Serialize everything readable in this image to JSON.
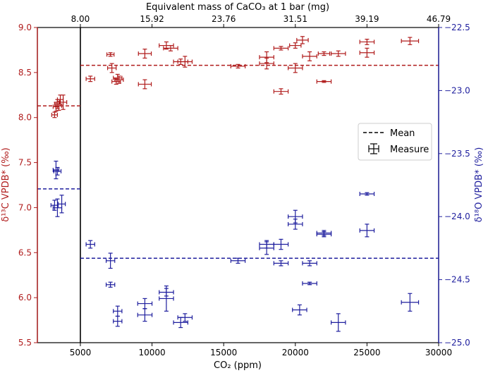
{
  "chart_data": {
    "type": "scatter",
    "xlabel": "CO₂ (ppm)",
    "x_ticks": [
      "5000",
      "10000",
      "15000",
      "20000",
      "25000",
      "30000"
    ],
    "x_tick_values": [
      5000,
      10000,
      15000,
      20000,
      25000,
      30000
    ],
    "xlim": [
      2000,
      30000
    ],
    "top_xlabel": "Equivalent mass of CaCO₃ at 1 bar (mg)",
    "top_ticks": [
      "8.00",
      "15.92",
      "23.76",
      "31.51",
      "39.19",
      "46.79"
    ],
    "ylabel_left": "δ¹³C VPDB* (‰)",
    "ylim_left": [
      5.5,
      9.0
    ],
    "left_ticks": [
      "5.5",
      "6.0",
      "6.5",
      "7.0",
      "7.5",
      "8.0",
      "8.5",
      "9.0"
    ],
    "left_tick_values": [
      5.5,
      6.0,
      6.5,
      7.0,
      7.5,
      8.0,
      8.5,
      9.0
    ],
    "ylabel_right": "δ¹⁸O VPDB* (‰)",
    "ylim_right": [
      -25.0,
      -22.5
    ],
    "right_ticks": [
      "−22.5",
      "−23.0",
      "−23.5",
      "−24.0",
      "−24.5",
      "−25.0"
    ],
    "right_tick_values": [
      -22.5,
      -23.0,
      -23.5,
      -24.0,
      -24.5,
      -25.0
    ],
    "vline_x": 5000,
    "legend": {
      "position": "center-right",
      "mean_label": "Mean",
      "measure_label": "Measure"
    },
    "colors": {
      "carbon": "#b01c1c",
      "oxygen": "#1f1f9e",
      "axis": "#000000"
    },
    "series": [
      {
        "name": "δ¹³C",
        "axis": "left",
        "color": "#b01c1c",
        "means": [
          {
            "x_range": [
              2000,
              5000
            ],
            "y": 8.13
          },
          {
            "x_range": [
              5000,
              30000
            ],
            "y": 8.58
          }
        ],
        "points": [
          {
            "x": 3200,
            "y": 8.03,
            "xerr": 200,
            "yerr": 0.03
          },
          {
            "x": 3300,
            "y": 8.12,
            "xerr": 200,
            "yerr": 0.05
          },
          {
            "x": 3400,
            "y": 8.15,
            "xerr": 200,
            "yerr": 0.05
          },
          {
            "x": 3500,
            "y": 8.13,
            "xerr": 200,
            "yerr": 0.05
          },
          {
            "x": 3600,
            "y": 8.2,
            "xerr": 200,
            "yerr": 0.05
          },
          {
            "x": 3800,
            "y": 8.17,
            "xerr": 250,
            "yerr": 0.08
          },
          {
            "x": 5700,
            "y": 8.43,
            "xerr": 300,
            "yerr": 0.03
          },
          {
            "x": 7100,
            "y": 8.7,
            "xerr": 250,
            "yerr": 0.02
          },
          {
            "x": 7200,
            "y": 8.55,
            "xerr": 300,
            "yerr": 0.05
          },
          {
            "x": 7500,
            "y": 8.4,
            "xerr": 300,
            "yerr": 0.03
          },
          {
            "x": 7600,
            "y": 8.44,
            "xerr": 300,
            "yerr": 0.04
          },
          {
            "x": 7700,
            "y": 8.42,
            "xerr": 300,
            "yerr": 0.04
          },
          {
            "x": 9500,
            "y": 8.71,
            "xerr": 450,
            "yerr": 0.05
          },
          {
            "x": 9500,
            "y": 8.37,
            "xerr": 450,
            "yerr": 0.05
          },
          {
            "x": 11000,
            "y": 8.8,
            "xerr": 500,
            "yerr": 0.04
          },
          {
            "x": 11300,
            "y": 8.77,
            "xerr": 500,
            "yerr": 0.03
          },
          {
            "x": 12000,
            "y": 8.62,
            "xerr": 500,
            "yerr": 0.03
          },
          {
            "x": 12300,
            "y": 8.62,
            "xerr": 500,
            "yerr": 0.06
          },
          {
            "x": 16000,
            "y": 8.57,
            "xerr": 500,
            "yerr": 0.02
          },
          {
            "x": 18000,
            "y": 8.67,
            "xerr": 500,
            "yerr": 0.06
          },
          {
            "x": 18000,
            "y": 8.6,
            "xerr": 500,
            "yerr": 0.06
          },
          {
            "x": 19000,
            "y": 8.77,
            "xerr": 500,
            "yerr": 0.02
          },
          {
            "x": 19000,
            "y": 8.29,
            "xerr": 500,
            "yerr": 0.03
          },
          {
            "x": 20000,
            "y": 8.8,
            "xerr": 400,
            "yerr": 0.03
          },
          {
            "x": 20000,
            "y": 8.55,
            "xerr": 500,
            "yerr": 0.05
          },
          {
            "x": 20500,
            "y": 8.86,
            "xerr": 400,
            "yerr": 0.04
          },
          {
            "x": 21000,
            "y": 8.68,
            "xerr": 500,
            "yerr": 0.05
          },
          {
            "x": 22000,
            "y": 8.71,
            "xerr": 400,
            "yerr": 0.02
          },
          {
            "x": 22000,
            "y": 8.4,
            "xerr": 500,
            "yerr": 0.01
          },
          {
            "x": 23000,
            "y": 8.71,
            "xerr": 500,
            "yerr": 0.03
          },
          {
            "x": 25000,
            "y": 8.84,
            "xerr": 500,
            "yerr": 0.03
          },
          {
            "x": 25000,
            "y": 8.72,
            "xerr": 500,
            "yerr": 0.05
          },
          {
            "x": 28000,
            "y": 8.85,
            "xerr": 600,
            "yerr": 0.04
          }
        ]
      },
      {
        "name": "δ¹⁸O",
        "axis": "right",
        "color": "#1f1f9e",
        "means": [
          {
            "x_range": [
              2000,
              5000
            ],
            "y": -23.78
          },
          {
            "x_range": [
              5000,
              30000
            ],
            "y": -24.33
          }
        ],
        "points": [
          {
            "x": 3300,
            "y": -23.63,
            "xerr": 200,
            "yerr": 0.07
          },
          {
            "x": 3400,
            "y": -23.64,
            "xerr": 250,
            "yerr": 0.03
          },
          {
            "x": 3200,
            "y": -23.91,
            "xerr": 250,
            "yerr": 0.04
          },
          {
            "x": 3400,
            "y": -23.93,
            "xerr": 300,
            "yerr": 0.07
          },
          {
            "x": 3700,
            "y": -23.9,
            "xerr": 250,
            "yerr": 0.07
          },
          {
            "x": 5700,
            "y": -24.22,
            "xerr": 300,
            "yerr": 0.03
          },
          {
            "x": 7100,
            "y": -24.35,
            "xerr": 300,
            "yerr": 0.06
          },
          {
            "x": 7100,
            "y": -24.54,
            "xerr": 300,
            "yerr": 0.02
          },
          {
            "x": 7600,
            "y": -24.75,
            "xerr": 300,
            "yerr": 0.04
          },
          {
            "x": 7600,
            "y": -24.83,
            "xerr": 300,
            "yerr": 0.04
          },
          {
            "x": 9500,
            "y": -24.69,
            "xerr": 500,
            "yerr": 0.04
          },
          {
            "x": 9500,
            "y": -24.78,
            "xerr": 500,
            "yerr": 0.05
          },
          {
            "x": 11000,
            "y": -24.6,
            "xerr": 500,
            "yerr": 0.03
          },
          {
            "x": 11000,
            "y": -24.65,
            "xerr": 500,
            "yerr": 0.1
          },
          {
            "x": 12000,
            "y": -24.84,
            "xerr": 500,
            "yerr": 0.04
          },
          {
            "x": 12300,
            "y": -24.8,
            "xerr": 500,
            "yerr": 0.03
          },
          {
            "x": 16000,
            "y": -24.35,
            "xerr": 500,
            "yerr": 0.02
          },
          {
            "x": 18000,
            "y": -24.22,
            "xerr": 500,
            "yerr": 0.03
          },
          {
            "x": 18000,
            "y": -24.25,
            "xerr": 500,
            "yerr": 0.05
          },
          {
            "x": 19000,
            "y": -24.22,
            "xerr": 500,
            "yerr": 0.04
          },
          {
            "x": 19000,
            "y": -24.37,
            "xerr": 500,
            "yerr": 0.02
          },
          {
            "x": 20000,
            "y": -24.0,
            "xerr": 500,
            "yerr": 0.05
          },
          {
            "x": 20000,
            "y": -24.06,
            "xerr": 500,
            "yerr": 0.04
          },
          {
            "x": 20300,
            "y": -24.74,
            "xerr": 500,
            "yerr": 0.04
          },
          {
            "x": 21000,
            "y": -24.37,
            "xerr": 500,
            "yerr": 0.02
          },
          {
            "x": 21000,
            "y": -24.53,
            "xerr": 500,
            "yerr": 0.01
          },
          {
            "x": 22000,
            "y": -24.13,
            "xerr": 500,
            "yerr": 0.02
          },
          {
            "x": 22000,
            "y": -24.14,
            "xerr": 500,
            "yerr": 0.02
          },
          {
            "x": 23000,
            "y": -24.84,
            "xerr": 500,
            "yerr": 0.07
          },
          {
            "x": 25000,
            "y": -23.82,
            "xerr": 500,
            "yerr": 0.01
          },
          {
            "x": 25000,
            "y": -24.11,
            "xerr": 500,
            "yerr": 0.05
          },
          {
            "x": 28000,
            "y": -24.68,
            "xerr": 600,
            "yerr": 0.07
          }
        ]
      }
    ]
  }
}
